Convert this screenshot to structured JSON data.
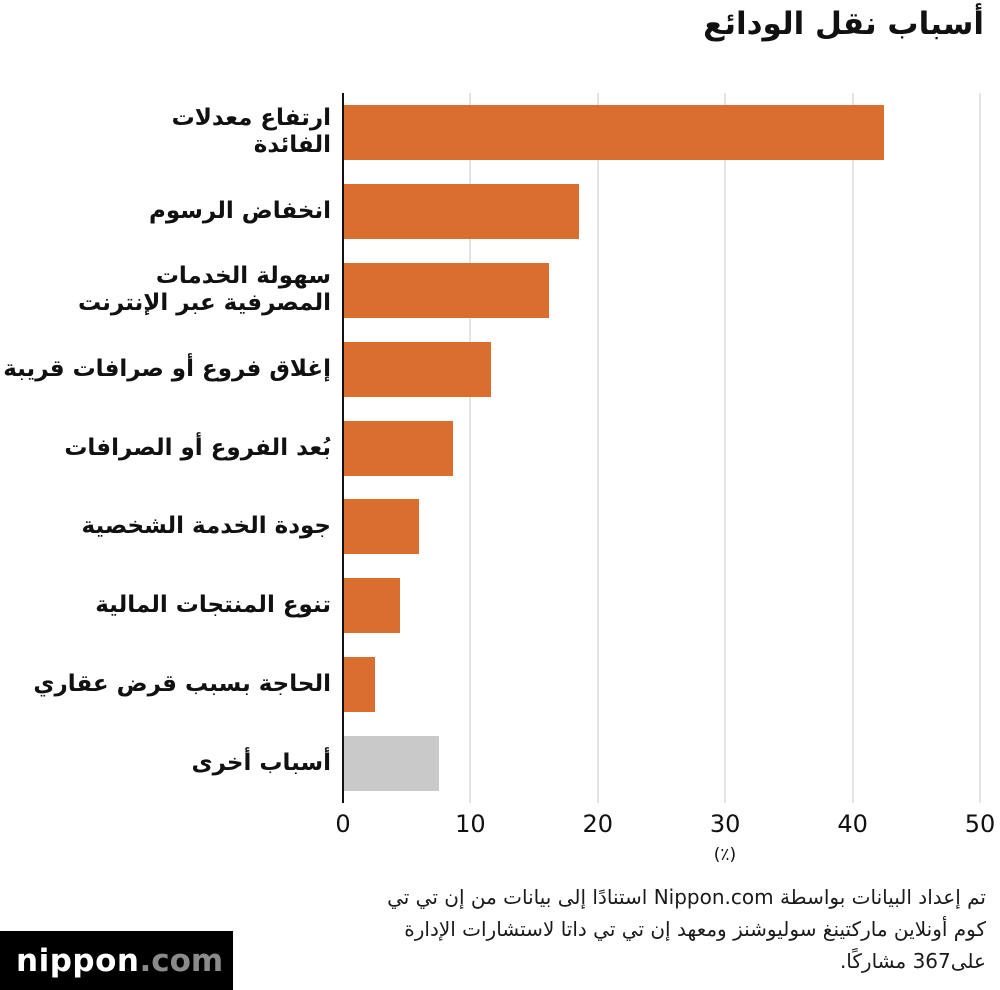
{
  "title": "أسباب نقل الودائع",
  "chart_data": {
    "type": "bar",
    "orientation": "horizontal",
    "title": "أسباب نقل الودائع",
    "categories": [
      "ارتفاع معدلات\nالفائدة",
      "انخفاض الرسوم",
      "سهولة الخدمات\nالمصرفية عبر الإنترنت",
      "إغلاق فروع أو صرافات قريبة",
      "بُعد الفروع أو الصرافات",
      "جودة الخدمة الشخصية",
      "تنوع المنتجات المالية",
      "الحاجة بسبب قرض عقاري",
      "أسباب أخرى"
    ],
    "values": [
      42.5,
      18.5,
      16.2,
      11.6,
      8.6,
      6.0,
      4.5,
      2.5,
      7.5
    ],
    "bar_colors": [
      "#d96e2f",
      "#d96e2f",
      "#d96e2f",
      "#d96e2f",
      "#d96e2f",
      "#d96e2f",
      "#d96e2f",
      "#d96e2f",
      "#c9c9c9"
    ],
    "xlabel": "(٪)",
    "xlim": [
      0,
      50
    ],
    "xticks": [
      0,
      10,
      20,
      30,
      40,
      50
    ],
    "grid": true,
    "legend": "none"
  },
  "footer": {
    "note_lines": [
      "تم إعداد البيانات بواسطة Nippon.com استنادًا إلى بيانات من إن تي تي",
      "كوم أونلاين ماركتينغ سوليوشنز ومعهد إن تي تي داتا لاستشارات الإدارة",
      "على367 مشاركًا."
    ],
    "logo": {
      "name": "nippon",
      "tld": ".com"
    }
  },
  "colors": {
    "bar_orange": "#d96e2f",
    "bar_gray": "#c9c9c9",
    "gridline": "#c9c9c9",
    "axis": "#111111",
    "logo_bg": "#000000",
    "logo_text": "#ffffff",
    "logo_tld": "#8a8a8a"
  }
}
